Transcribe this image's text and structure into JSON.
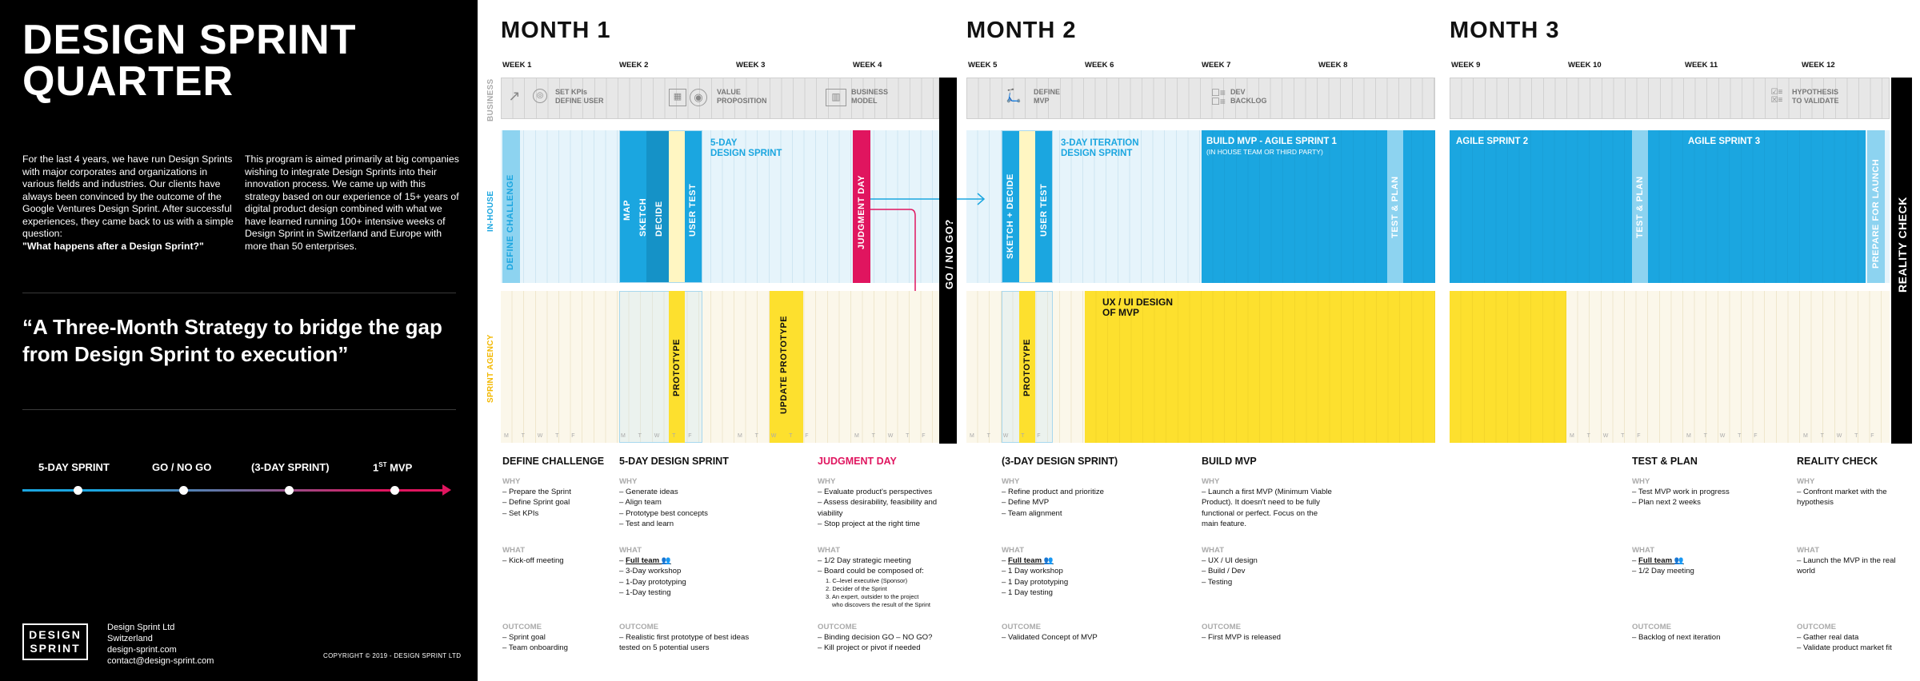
{
  "left": {
    "title_line1": "DESIGN SPRINT",
    "title_line2": "QUARTER",
    "para1": "For the last 4 years, we have run Design Sprints with major corporates and organizations in various fields and industries. Our clients have always been convinced by the outcome of the Google Ventures Design Sprint. After successful experiences, they came back to us with a simple question:",
    "para1_bold": "\"What happens after a Design Sprint?\"",
    "para2": "This program is aimed primarily at big companies wishing to integrate Design Sprints into their innovation process. We came up with this strategy based on our experience of 15+ years of digital product design combined with what we have learned running 100+ intensive weeks of Design Sprint in Switzerland and Europe with more than 50 enterprises.",
    "quote": "“A Three-Month Strategy to bridge the gap from Design Sprint to execution”",
    "timeline": [
      "5-DAY SPRINT",
      "GO / NO GO",
      "(3-DAY SPRINT)",
      "1",
      "ST",
      "MVP"
    ],
    "logo_l1": "DESIGN",
    "logo_l2": "SPRINT",
    "company": [
      "Design Sprint Ltd",
      "Switzerland",
      "design-sprint.com",
      "contact@design-sprint.com"
    ],
    "copyright": "COPYRIGHT © 2019 - DESIGN SPRINT LTD"
  },
  "months": [
    "MONTH 1",
    "MONTH 2",
    "MONTH 3"
  ],
  "weeks": [
    "WEEK 1",
    "WEEK 2",
    "WEEK 3",
    "WEEK 4",
    "WEEK 5",
    "WEEK 6",
    "WEEK 7",
    "WEEK 8",
    "WEEK 9",
    "WEEK 10",
    "WEEK 11",
    "WEEK 12"
  ],
  "rows": {
    "business": "BUSINESS",
    "inhouse": "IN-HOUSE",
    "agency": "SPRINT AGENCY"
  },
  "business": {
    "kpi": [
      "SET KPIs",
      "DEFINE USER"
    ],
    "vp": [
      "VALUE",
      "PROPOSITION"
    ],
    "bm": [
      "BUSINESS",
      "MODEL"
    ],
    "mvp": [
      "DEFINE",
      "MVP"
    ],
    "dev": [
      "DEV",
      "BACKLOG"
    ],
    "hyp": [
      "HYPOTHESIS",
      "TO VALIDATE"
    ]
  },
  "blocks": {
    "define_challenge": "DEFINE CHALLENGE",
    "map": "MAP",
    "sketch": "SKETCH",
    "decide": "DECIDE",
    "user_test": "USER TEST",
    "five_day": [
      "5-DAY",
      "DESIGN SPRINT"
    ],
    "judgment": "JUDGMENT DAY",
    "go_no_go": "GO / NO GO?",
    "sketch_decide": "SKETCH + DECIDE",
    "user_test2": "USER TEST",
    "three_day": [
      "3-DAY ITERATION",
      "DESIGN SPRINT"
    ],
    "build_mvp": "BUILD MVP - AGILE SPRINT 1",
    "build_mvp_sub": "(IN HOUSE TEAM OR THIRD PARTY)",
    "test_plan": "TEST & PLAN",
    "agile2": "AGILE SPRINT 2",
    "agile3": "AGILE SPRINT 3",
    "test_plan2": "TEST & PLAN",
    "prepare": "PREPARE FOR LAUNCH",
    "reality": "REALITY CHECK",
    "prototype": "PROTOTYPE",
    "update_prototype": "UPDATE PROTOTYPE",
    "prototype2": "PROTOTYPE",
    "uxui": [
      "UX / UI DESIGN",
      "OF MVP"
    ]
  },
  "days": "M T W T F",
  "columns": [
    {
      "title": "DEFINE CHALLENGE",
      "why": [
        "Prepare the Sprint",
        "Define Sprint goal",
        "Set KPIs"
      ],
      "what": [
        "Kick-off meeting"
      ],
      "outcome": [
        "Sprint goal",
        "Team onboarding"
      ]
    },
    {
      "title": "5-DAY DESIGN SPRINT",
      "why": [
        "Generate ideas",
        "Align team",
        "Prototype best concepts",
        "Test and learn"
      ],
      "what": [
        "Full team 👥",
        "3-Day workshop",
        "1-Day prototyping",
        "1-Day testing"
      ],
      "outcome": [
        "Realistic first prototype of best ideas tested on 5 potential users"
      ]
    },
    {
      "title": "JUDGMENT DAY",
      "why": [
        "Evaluate product's perspectives",
        "Assess desirability, feasibility and viability",
        "Stop project at the right time"
      ],
      "what": [
        "1/2 Day strategic meeting",
        "Board could be composed of:"
      ],
      "what_small": [
        "1. C–level executive (Sponsor)",
        "2. Decider of the Sprint",
        "3. An expert, outsider to the project",
        "who discovers the result of the Sprint"
      ],
      "outcome": [
        "Binding decision GO – NO GO?",
        "Kill project or pivot if needed"
      ]
    },
    {
      "title": "(3-DAY DESIGN SPRINT)",
      "why": [
        "Refine product and prioritize",
        "Define MVP",
        "Team alignment"
      ],
      "what": [
        "Full team 👥",
        "1 Day workshop",
        "1 Day prototyping",
        "1 Day testing"
      ],
      "outcome": [
        "Validated Concept of MVP"
      ]
    },
    {
      "title": "BUILD MVP",
      "why": [
        "Launch a first MVP (Minimum Viable Product). It doesn't need to be fully functional or perfect. Focus on the main feature."
      ],
      "what": [
        "UX / UI design",
        "Build / Dev",
        "Testing"
      ],
      "outcome": [
        "First MVP is released"
      ]
    },
    {
      "title": "TEST & PLAN",
      "why": [
        "Test MVP work in progress",
        "Plan next 2 weeks"
      ],
      "what": [
        "Full team 👥",
        "1/2 Day meeting"
      ],
      "outcome": [
        "Backlog of next iteration"
      ]
    },
    {
      "title": "REALITY CHECK",
      "why": [
        "Confront market with the hypothesis"
      ],
      "what": [
        "Launch the MVP in the real world"
      ],
      "outcome": [
        "Gather real data",
        "Validate product market fit"
      ]
    }
  ],
  "labels": {
    "why": "WHY",
    "what": "WHAT",
    "outcome": "OUTCOME"
  },
  "colors": {
    "blue": "#1ba6e0",
    "light_blue": "#8dd3f0",
    "pink": "#e0155f",
    "yellow": "#fde02e",
    "pale_yellow": "#fff6c2"
  }
}
